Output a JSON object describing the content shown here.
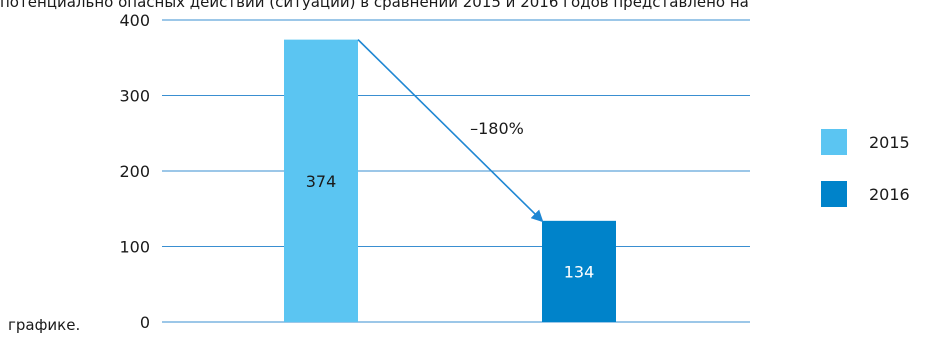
{
  "page": {
    "top_text": "потенциально опасных действий (ситуаций) в сравнении 2015 и 2016 годов представлено на",
    "bottom_text": "графике."
  },
  "chart_data": {
    "type": "bar",
    "categories": [
      "2015",
      "2016"
    ],
    "values": [
      374,
      134
    ],
    "series_colors": [
      "#5bc5f2",
      "#0083ca"
    ],
    "label_colors": [
      "#1a1a1a",
      "#ffffff"
    ],
    "data_labels": [
      "374",
      "134"
    ],
    "ylim": [
      0,
      400
    ],
    "yticks": [
      0,
      100,
      200,
      300,
      400
    ],
    "ytick_labels": [
      "0",
      "100",
      "200",
      "300",
      "400"
    ],
    "grid": true,
    "grid_color": "#3a8fd1",
    "legend": {
      "placement": "right",
      "items": [
        {
          "label": "2015",
          "color": "#5bc5f2"
        },
        {
          "label": "2016",
          "color": "#0083ca"
        }
      ]
    },
    "annotation": {
      "text": "–180%",
      "arrow_color": "#1f87d3",
      "from_category": "2015",
      "to_category": "2016"
    }
  }
}
